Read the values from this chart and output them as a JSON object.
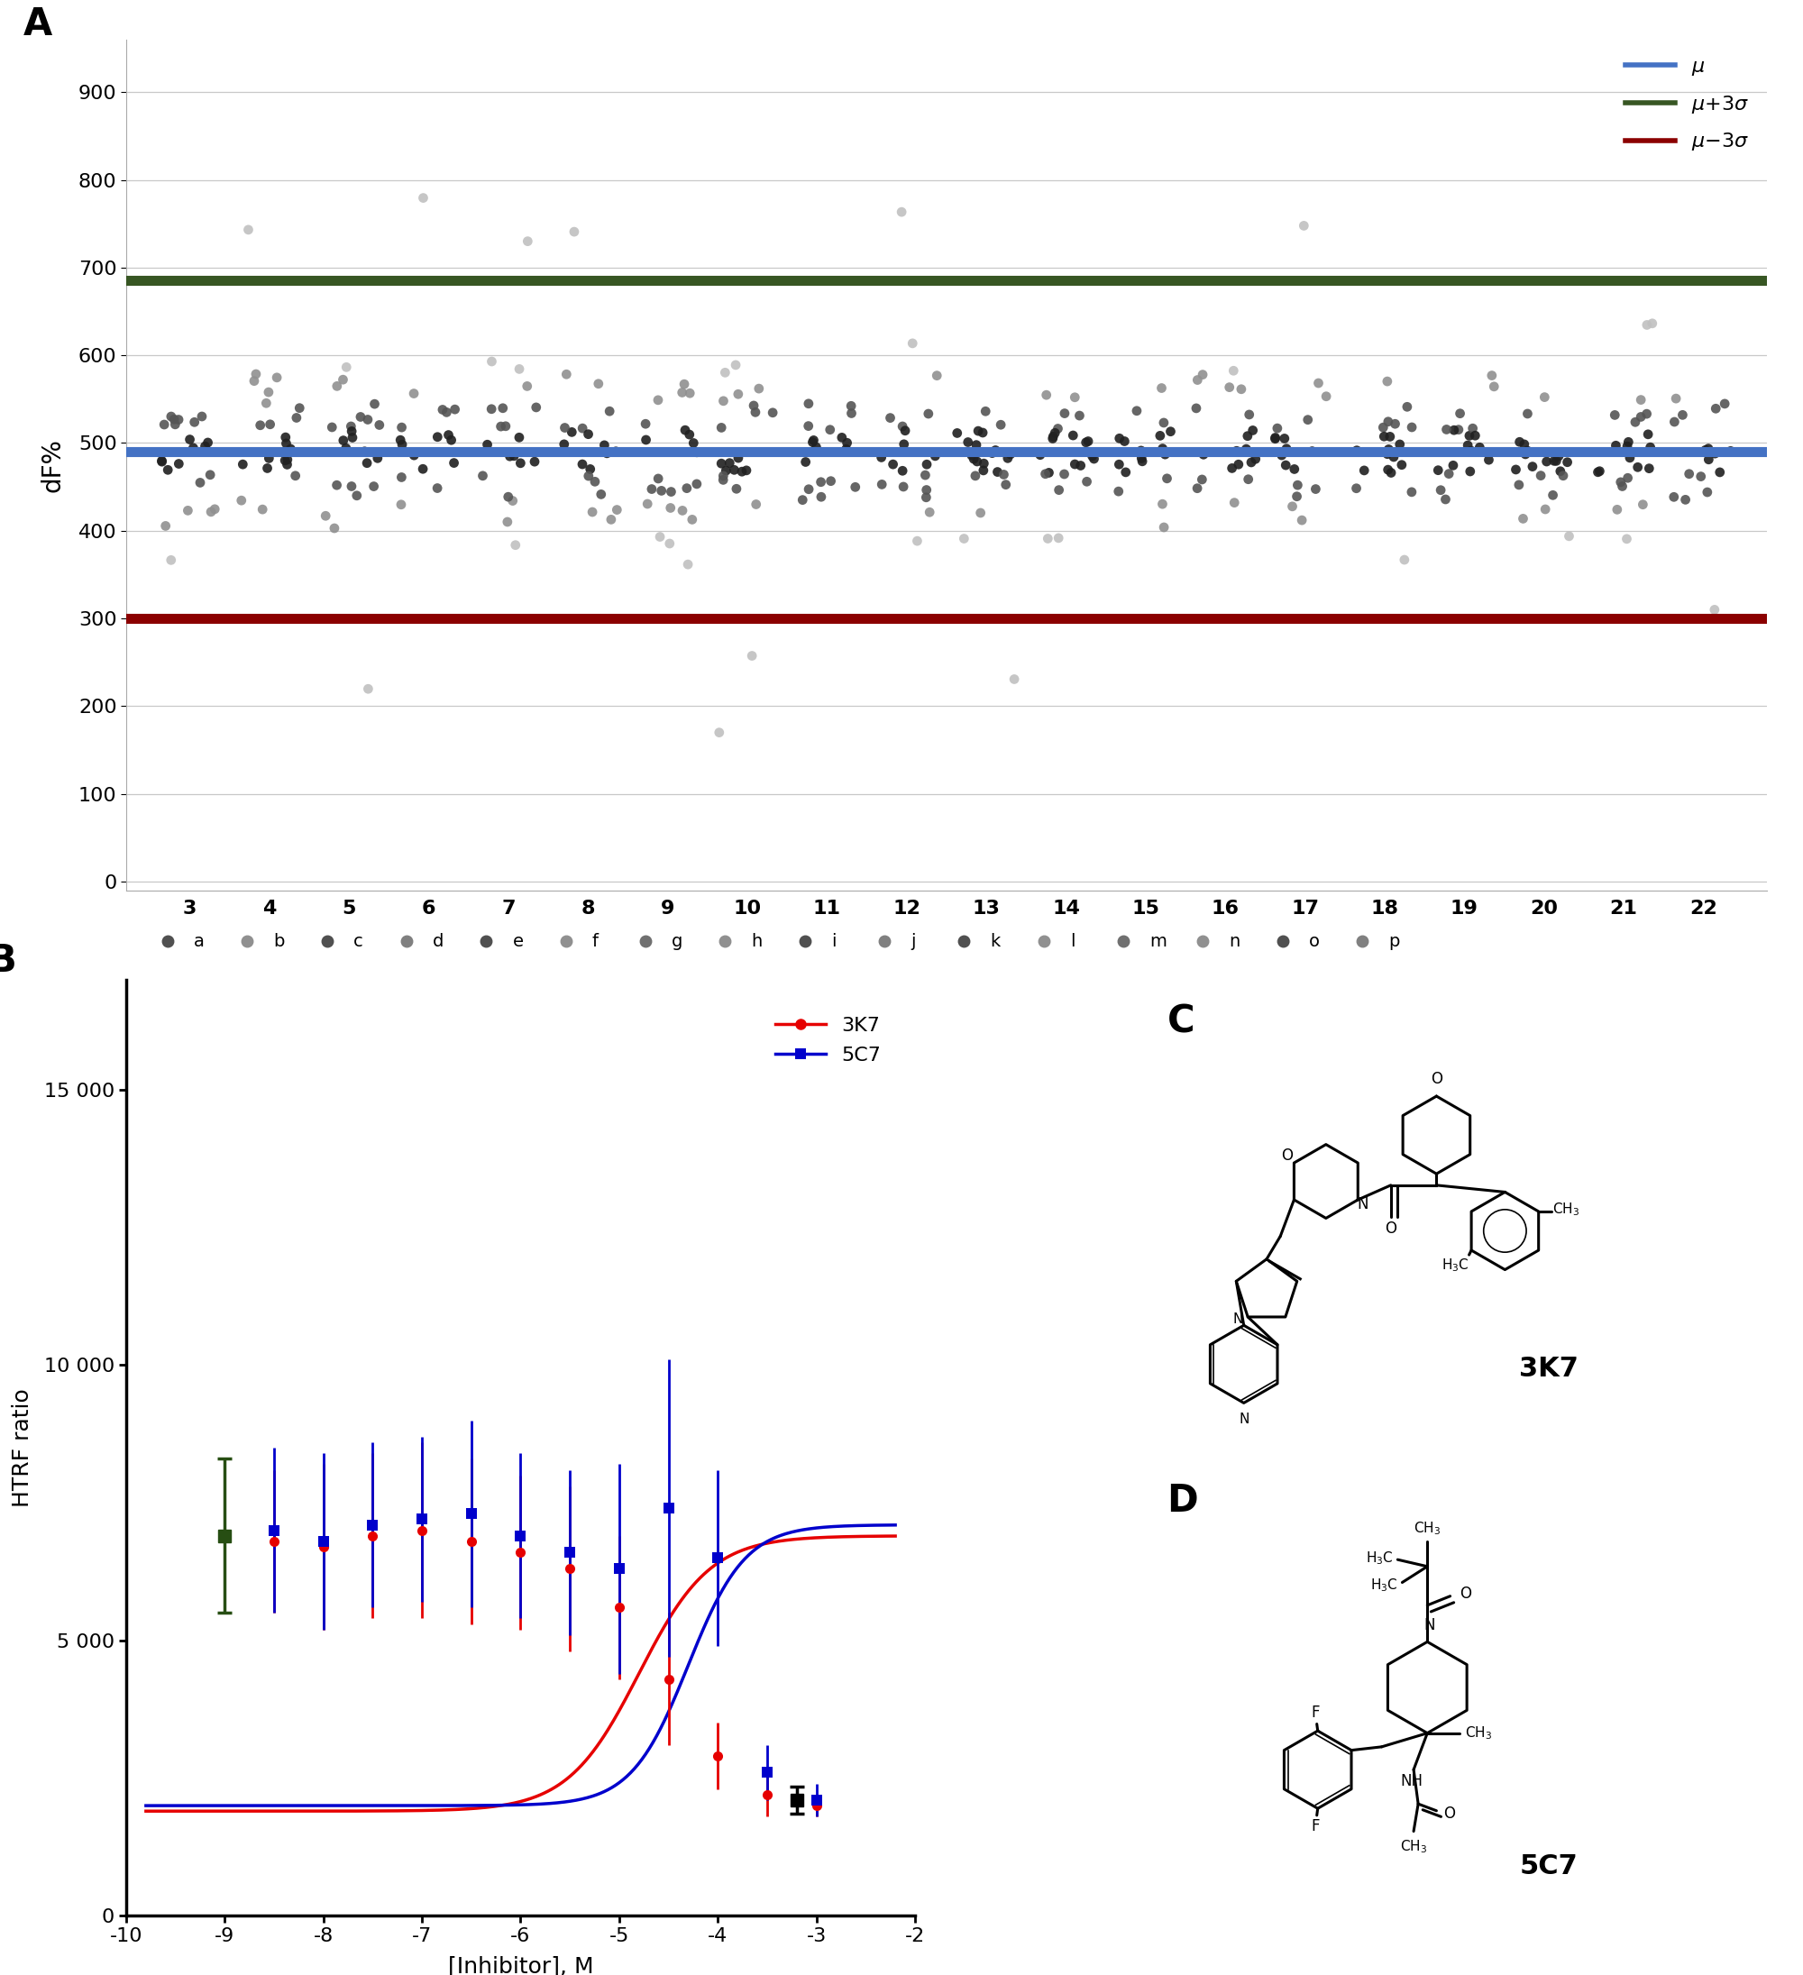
{
  "panel_A": {
    "mu": 490,
    "mu_plus_3sigma": 685,
    "mu_minus_3sigma": 300,
    "ylim": [
      -10,
      960
    ],
    "yticks": [
      0,
      100,
      200,
      300,
      400,
      500,
      600,
      700,
      800,
      900
    ],
    "ylabel": "dF%",
    "num_labels": [
      "3",
      "4",
      "5",
      "6",
      "7",
      "8",
      "9",
      "10",
      "11",
      "12",
      "13",
      "14",
      "15",
      "16",
      "17",
      "18",
      "19",
      "20",
      "21",
      "22"
    ],
    "letter_labels": [
      "a",
      "b",
      "c",
      "d",
      "e",
      "f",
      "g",
      "h",
      "i",
      "j",
      "k",
      "l",
      "m",
      "n",
      "o",
      "p"
    ],
    "mu_color": "#4472C4",
    "mu_plus_color": "#375623",
    "mu_minus_color": "#8B0000",
    "line_width": 8
  },
  "panel_B": {
    "xlabel": "[Inhibitor], M",
    "ylabel": "HTRF ratio",
    "xlim": [
      -10,
      -2
    ],
    "ylim": [
      0,
      17000
    ],
    "xticks": [
      -10,
      -9,
      -8,
      -7,
      -6,
      -5,
      -4,
      -3,
      -2
    ],
    "yticks": [
      0,
      5000,
      10000,
      15000
    ],
    "color_3K7": "#E60000",
    "color_5C7": "#0000CC",
    "color_dmso": "#274E13",
    "color_blank": "#000000",
    "x_3K7": [
      -8.5,
      -8.0,
      -7.5,
      -7.0,
      -6.5,
      -6.0,
      -5.5,
      -5.0,
      -4.5,
      -4.0,
      -3.5,
      -3.0
    ],
    "y_3K7": [
      6800,
      6700,
      6900,
      7000,
      6800,
      6600,
      6300,
      5600,
      4300,
      2900,
      2200,
      2000
    ],
    "yerr_3K7": [
      1300,
      1500,
      1500,
      1600,
      1500,
      1400,
      1500,
      1300,
      1200,
      600,
      400,
      200
    ],
    "x_5C7": [
      -8.5,
      -8.0,
      -7.5,
      -7.0,
      -6.5,
      -6.0,
      -5.5,
      -5.0,
      -4.5,
      -4.0,
      -3.5,
      -3.0
    ],
    "y_5C7": [
      7000,
      6800,
      7100,
      7200,
      7300,
      6900,
      6600,
      6300,
      7400,
      6500,
      2600,
      2100
    ],
    "yerr_5C7": [
      1500,
      1600,
      1500,
      1500,
      1700,
      1500,
      1500,
      1900,
      2700,
      1600,
      500,
      300
    ],
    "x_dmso": [
      -9.0
    ],
    "y_dmso": [
      6900
    ],
    "yerr_dmso": [
      1400
    ],
    "x_blank": [
      -3.2
    ],
    "y_blank": [
      2100
    ],
    "yerr_blank": [
      250
    ],
    "ic50_3K7": -4.8,
    "hill_3K7": 1.2,
    "ic50_5C7": -4.3,
    "hill_5C7": 1.5,
    "top_3K7": 6900,
    "bottom_3K7": 1900,
    "top_5C7": 7100,
    "bottom_5C7": 2000
  }
}
